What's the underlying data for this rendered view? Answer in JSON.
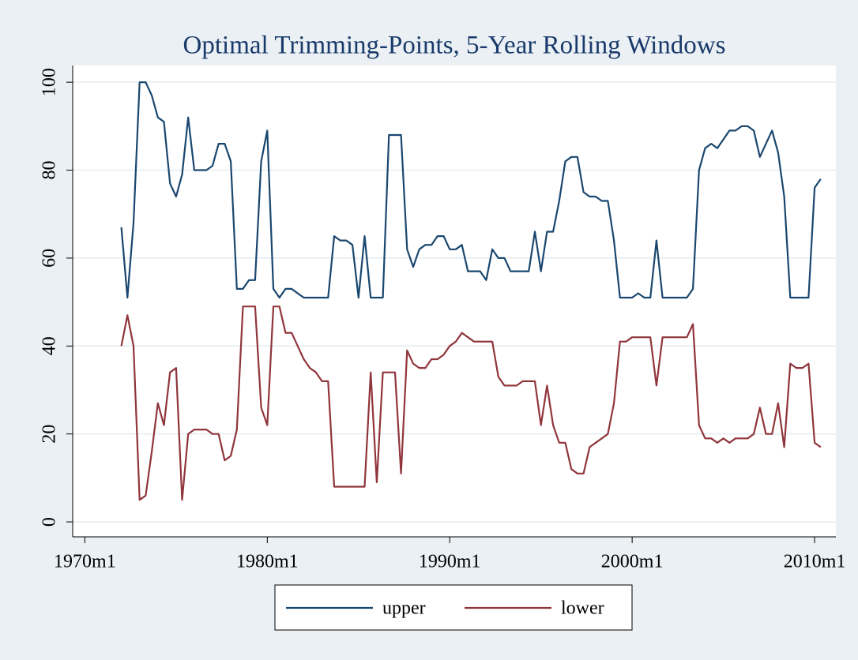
{
  "chart_data": {
    "type": "line",
    "title": "Optimal Trimming-Points, 5-Year Rolling Windows",
    "x": [
      "1972m1",
      "1972m5",
      "1972m9",
      "1973m1",
      "1973m5",
      "1973m9",
      "1974m1",
      "1974m5",
      "1974m9",
      "1975m1",
      "1975m5",
      "1975m9",
      "1976m1",
      "1976m5",
      "1976m9",
      "1977m1",
      "1977m5",
      "1977m9",
      "1978m1",
      "1978m5",
      "1978m9",
      "1979m1",
      "1979m5",
      "1979m9",
      "1980m1",
      "1980m5",
      "1980m9",
      "1981m1",
      "1981m5",
      "1981m9",
      "1982m1",
      "1982m5",
      "1982m9",
      "1983m1",
      "1983m5",
      "1983m9",
      "1984m1",
      "1984m5",
      "1984m9",
      "1985m1",
      "1985m5",
      "1985m9",
      "1986m1",
      "1986m5",
      "1986m9",
      "1987m1",
      "1987m5",
      "1987m9",
      "1988m1",
      "1988m5",
      "1988m9",
      "1989m1",
      "1989m5",
      "1989m9",
      "1990m1",
      "1990m5",
      "1990m9",
      "1991m1",
      "1991m5",
      "1991m9",
      "1992m1",
      "1992m5",
      "1992m9",
      "1993m1",
      "1993m5",
      "1993m9",
      "1994m1",
      "1994m5",
      "1994m9",
      "1995m1",
      "1995m5",
      "1995m9",
      "1996m1",
      "1996m5",
      "1996m9",
      "1997m1",
      "1997m5",
      "1997m9",
      "1998m1",
      "1998m5",
      "1998m9",
      "1999m1",
      "1999m5",
      "1999m9",
      "2000m1",
      "2000m5",
      "2000m9",
      "2001m1",
      "2001m5",
      "2001m9",
      "2002m1",
      "2002m5",
      "2002m9",
      "2003m1",
      "2003m5",
      "2003m9",
      "2004m1",
      "2004m5",
      "2004m9",
      "2005m1",
      "2005m5",
      "2005m9",
      "2006m1",
      "2006m5",
      "2006m9",
      "2007m1",
      "2007m5",
      "2007m9",
      "2008m1",
      "2008m5",
      "2008m9",
      "2009m1",
      "2009m5",
      "2009m9",
      "2010m1",
      "2010m5"
    ],
    "series": [
      {
        "name": "upper",
        "color": "#1a476f",
        "values": [
          67,
          51,
          68,
          100,
          100,
          97,
          92,
          91,
          77,
          74,
          79,
          92,
          80,
          80,
          80,
          81,
          86,
          86,
          82,
          53,
          53,
          55,
          55,
          82,
          89,
          53,
          51,
          53,
          53,
          52,
          51,
          51,
          51,
          51,
          51,
          65,
          64,
          64,
          63,
          51,
          65,
          51,
          51,
          51,
          88,
          88,
          88,
          62,
          58,
          62,
          63,
          63,
          65,
          65,
          62,
          62,
          63,
          57,
          57,
          57,
          55,
          62,
          60,
          60,
          57,
          57,
          57,
          57,
          66,
          57,
          66,
          66,
          73,
          82,
          83,
          83,
          75,
          74,
          74,
          73,
          73,
          64,
          51,
          51,
          51,
          52,
          51,
          51,
          64,
          51,
          51,
          51,
          51,
          51,
          53,
          80,
          85,
          86,
          85,
          87,
          89,
          89,
          90,
          90,
          89,
          83,
          86,
          89,
          84,
          74,
          51,
          51,
          51,
          51,
          76,
          78
        ]
      },
      {
        "name": "lower",
        "color": "#90353b",
        "values": [
          40,
          47,
          40,
          5,
          6,
          16,
          27,
          22,
          34,
          35,
          5,
          20,
          21,
          21,
          21,
          20,
          20,
          14,
          15,
          21,
          49,
          49,
          49,
          26,
          22,
          49,
          49,
          43,
          43,
          40,
          37,
          35,
          34,
          32,
          32,
          8,
          8,
          8,
          8,
          8,
          8,
          34,
          9,
          34,
          34,
          34,
          11,
          39,
          36,
          35,
          35,
          37,
          37,
          38,
          40,
          41,
          43,
          42,
          41,
          41,
          41,
          41,
          33,
          31,
          31,
          31,
          32,
          32,
          32,
          22,
          31,
          22,
          18,
          18,
          12,
          11,
          11,
          17,
          18,
          19,
          20,
          27,
          41,
          41,
          42,
          42,
          42,
          42,
          31,
          42,
          42,
          42,
          42,
          42,
          45,
          22,
          19,
          19,
          18,
          19,
          18,
          19,
          19,
          19,
          20,
          26,
          20,
          20,
          27,
          17,
          36,
          35,
          35,
          36,
          18,
          17
        ]
      }
    ],
    "xlim": [
      "1969m5",
      "2011m3"
    ],
    "xticks": [
      "1970m1",
      "1980m1",
      "1990m1",
      "2000m1",
      "2010m1"
    ],
    "ylim": [
      -3.4,
      103.8
    ],
    "yticks": [
      0,
      20,
      40,
      60,
      80,
      100
    ],
    "grid": true
  }
}
